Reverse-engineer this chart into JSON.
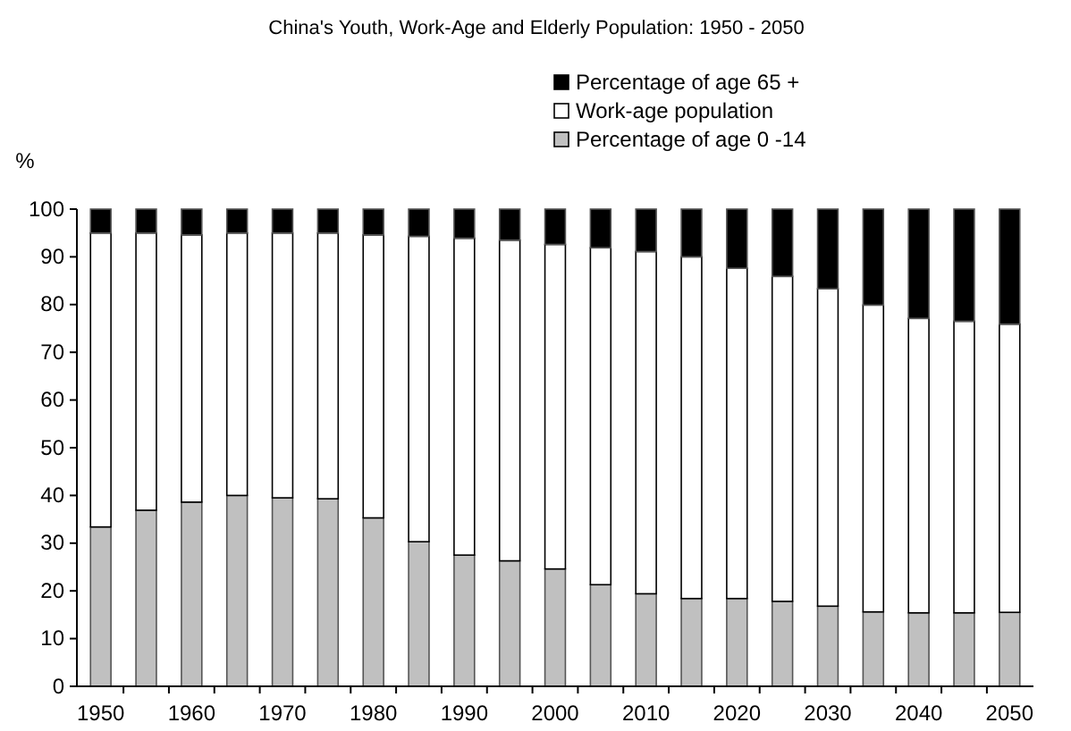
{
  "chart_data": {
    "type": "bar",
    "title": "China's Youth, Work-Age and Elderly Population: 1950 - 2050",
    "ylabel": "%",
    "stacked": true,
    "legend": "top right",
    "categories": [
      "1950",
      null,
      "1960",
      null,
      "1970",
      null,
      "1980",
      null,
      "1990",
      null,
      "2000",
      null,
      "2010",
      null,
      "2020",
      null,
      "2030",
      null,
      "2040",
      null,
      "2050"
    ],
    "ylim": [
      0,
      100
    ],
    "yticks": [
      0,
      10,
      20,
      30,
      40,
      50,
      60,
      70,
      80,
      90,
      100
    ],
    "series": [
      {
        "name": "Percentage of age 0 -14",
        "color": "#c0c0c0",
        "values": [
          33.4,
          36.9,
          38.6,
          40,
          39.5,
          39.3,
          35.3,
          30.3,
          27.5,
          26.3,
          24.6,
          21.3,
          19.4,
          18.4,
          18.4,
          17.8,
          16.8,
          15.6,
          15.4,
          15.4,
          15.5
        ]
      },
      {
        "name": "Work-age population",
        "color": "#ffffff",
        "values": [
          61.6,
          58.1,
          56,
          55,
          55.5,
          55.7,
          59.3,
          64,
          66.4,
          67.2,
          68,
          70.6,
          71.7,
          71.6,
          69.2,
          68.1,
          66.5,
          64.3,
          61.7,
          61.1,
          60.4
        ]
      },
      {
        "name": "Percentage of age 65 +",
        "color": "#000000",
        "values": [
          5,
          5,
          5.4,
          5,
          5,
          5,
          5.4,
          5.7,
          6.1,
          6.5,
          7.4,
          8.1,
          8.9,
          10,
          12.4,
          14.1,
          16.7,
          20.1,
          22.9,
          23.5,
          24.1
        ]
      }
    ]
  }
}
